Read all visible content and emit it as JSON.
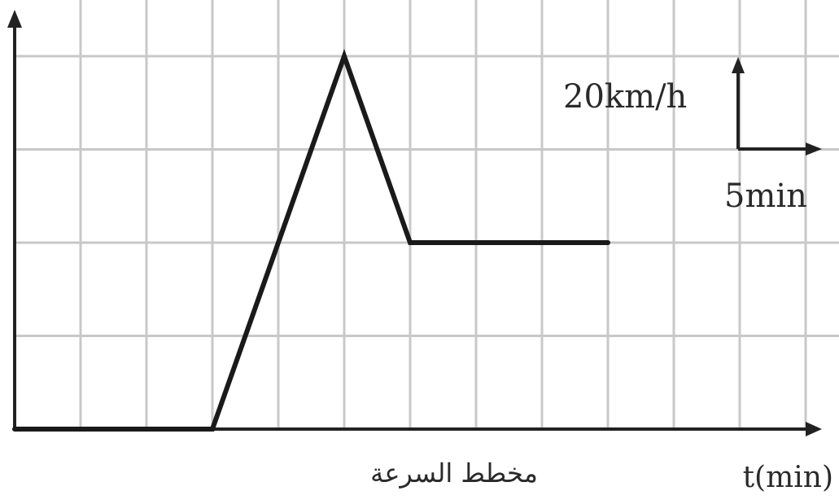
{
  "chart_data": {
    "type": "line",
    "title": "",
    "xlabel": "t(min)",
    "ylabel": "",
    "caption": "مخطط السرعة",
    "scale_legend": {
      "y_unit_label": "20km/h",
      "x_unit_label": "5min"
    },
    "x_unit": "min",
    "y_unit": "km/h",
    "x_step": 5,
    "y_step": 20,
    "xlim": [
      0,
      60
    ],
    "ylim": [
      0,
      80
    ],
    "grid": true,
    "series": [
      {
        "x": [
          0,
          15,
          25,
          30,
          45
        ],
        "y": [
          0,
          0,
          80,
          40,
          40
        ]
      }
    ]
  }
}
